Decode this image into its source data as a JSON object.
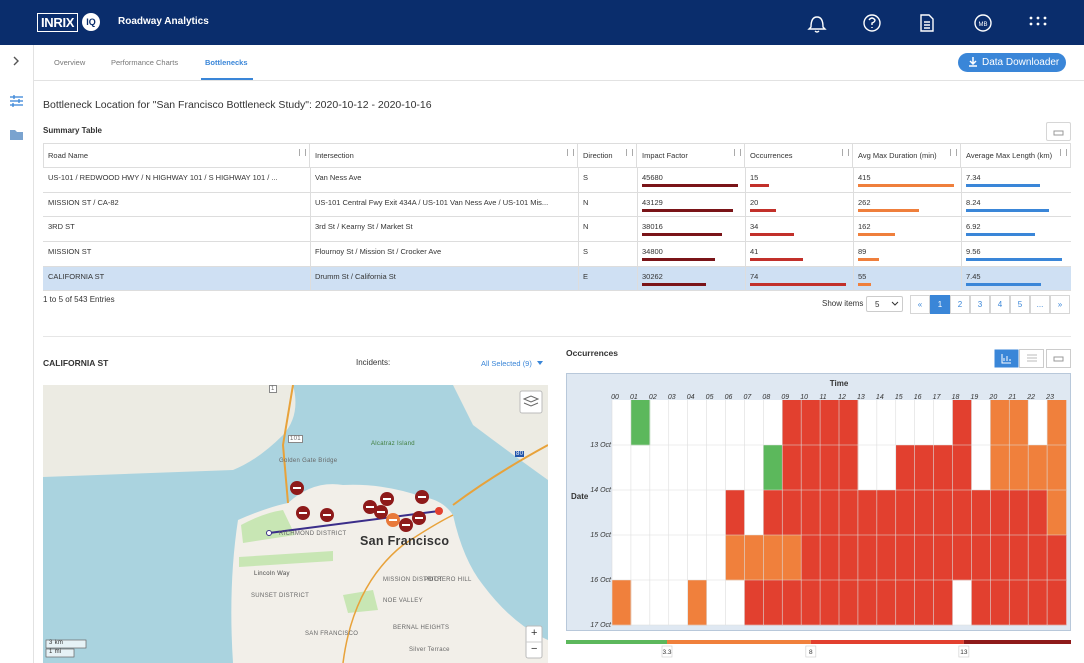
{
  "header": {
    "logo": "INRIX",
    "logo_badge": "IQ",
    "app_title": "Roadway Analytics",
    "avatar": "MB"
  },
  "tabs": [
    "Overview",
    "Performance Charts",
    "Bottlenecks"
  ],
  "active_tab": 2,
  "download_button": "Data Downloader",
  "page_title": "Bottleneck Location for \"San Francisco Bottleneck Study\": 2020-10-12 - 2020-10-16",
  "summary_table": {
    "title": "Summary Table",
    "columns": [
      "Road Name",
      "Intersection",
      "Direction",
      "Impact Factor",
      "Occurrences",
      "Avg Max Duration (min)",
      "Average Max Length (km)"
    ],
    "rows": [
      [
        "US-101 / REDWOOD HWY / N HIGHWAY 101 / S HIGHWAY 101 / ...",
        "Van Ness Ave",
        "S",
        45680,
        15,
        415,
        7.34
      ],
      [
        "MISSION ST / CA-82",
        "US-101 Central Fwy Exit 434A / US-101 Van Ness Ave / US-101 Mis...",
        "N",
        43129,
        20,
        262,
        8.24
      ],
      [
        "3RD ST",
        "3rd St / Kearny St / Market St",
        "N",
        38016,
        34,
        162,
        6.92
      ],
      [
        "MISSION ST",
        "Flournoy St / Mission St / Crocker Ave",
        "S",
        34800,
        41,
        89,
        9.56
      ],
      [
        "CALIFORNIA ST",
        "Drumm St / California St",
        "E",
        30262,
        74,
        55,
        7.45
      ]
    ],
    "bar_columns": [
      {
        "column": 3,
        "color": "#7a1418"
      },
      {
        "column": 4,
        "color": "#c2302a"
      },
      {
        "column": 5,
        "color": "#ef7f3c"
      },
      {
        "column": 6,
        "color": "#3a86d8"
      }
    ],
    "selected_row": 4,
    "info": "1 to 5 of 543 Entries",
    "show_items_label": "Show items",
    "show_items": "5",
    "pages": [
      "«",
      "1",
      "2",
      "3",
      "4",
      "5",
      "...",
      "»"
    ],
    "current_page": 1
  },
  "map": {
    "title": "CALIFORNIA ST",
    "incidents_label": "Incidents:",
    "incidents_filter": "All Selected (9)",
    "labels": [
      "Alcatraz Island",
      "Golden Gate Bridge",
      "San Francisco",
      "RICHMOND DISTRICT",
      "Lincoln Way",
      "SUNSET DISTRICT",
      "MISSION DISTRICT",
      "POTRERO HILL",
      "NOE VALLEY",
      "BERNAL HEIGHTS",
      "SAN FRANCISCO",
      "Silver Terrace",
      "101",
      "80",
      "1"
    ],
    "scale": [
      "3 km",
      "1 mi"
    ],
    "zoom": [
      "+",
      "−"
    ]
  },
  "chart_data": {
    "type": "heatmap",
    "title": "Occurrences",
    "x_title": "Time",
    "y_title": "Date",
    "x": [
      "00",
      "01",
      "02",
      "03",
      "04",
      "05",
      "06",
      "07",
      "08",
      "09",
      "10",
      "11",
      "12",
      "13",
      "14",
      "15",
      "16",
      "17",
      "18",
      "19",
      "20",
      "21",
      "22",
      "23"
    ],
    "y": [
      "13 Oct",
      "14 Oct",
      "15 Oct",
      "16 Oct",
      "17 Oct"
    ],
    "values": [
      [
        null,
        2,
        null,
        null,
        null,
        null,
        null,
        null,
        null,
        10,
        10,
        10,
        10,
        null,
        null,
        null,
        null,
        null,
        10,
        null,
        6,
        6,
        null,
        6
      ],
      [
        null,
        null,
        null,
        null,
        null,
        null,
        null,
        null,
        2,
        10,
        10,
        10,
        10,
        null,
        null,
        10,
        10,
        10,
        10,
        null,
        6,
        6,
        6,
        6
      ],
      [
        null,
        null,
        null,
        null,
        null,
        null,
        10,
        null,
        10,
        10,
        10,
        10,
        10,
        10,
        10,
        10,
        10,
        10,
        10,
        10,
        10,
        10,
        10,
        6
      ],
      [
        null,
        null,
        null,
        null,
        null,
        null,
        6,
        6,
        6,
        6,
        10,
        10,
        10,
        10,
        10,
        10,
        10,
        10,
        10,
        10,
        10,
        10,
        10,
        10
      ],
      [
        6,
        null,
        null,
        null,
        6,
        null,
        null,
        10,
        10,
        10,
        10,
        10,
        10,
        10,
        10,
        10,
        10,
        10,
        null,
        10,
        10,
        10,
        10,
        10
      ]
    ],
    "color_scale": {
      "range": [
        0,
        16.5
      ],
      "thresholds": [
        3.3,
        8,
        13
      ],
      "colors": [
        "#5cb85c",
        "#f0803c",
        "#e2402f",
        "#8e1a1a"
      ]
    },
    "grid": true
  }
}
